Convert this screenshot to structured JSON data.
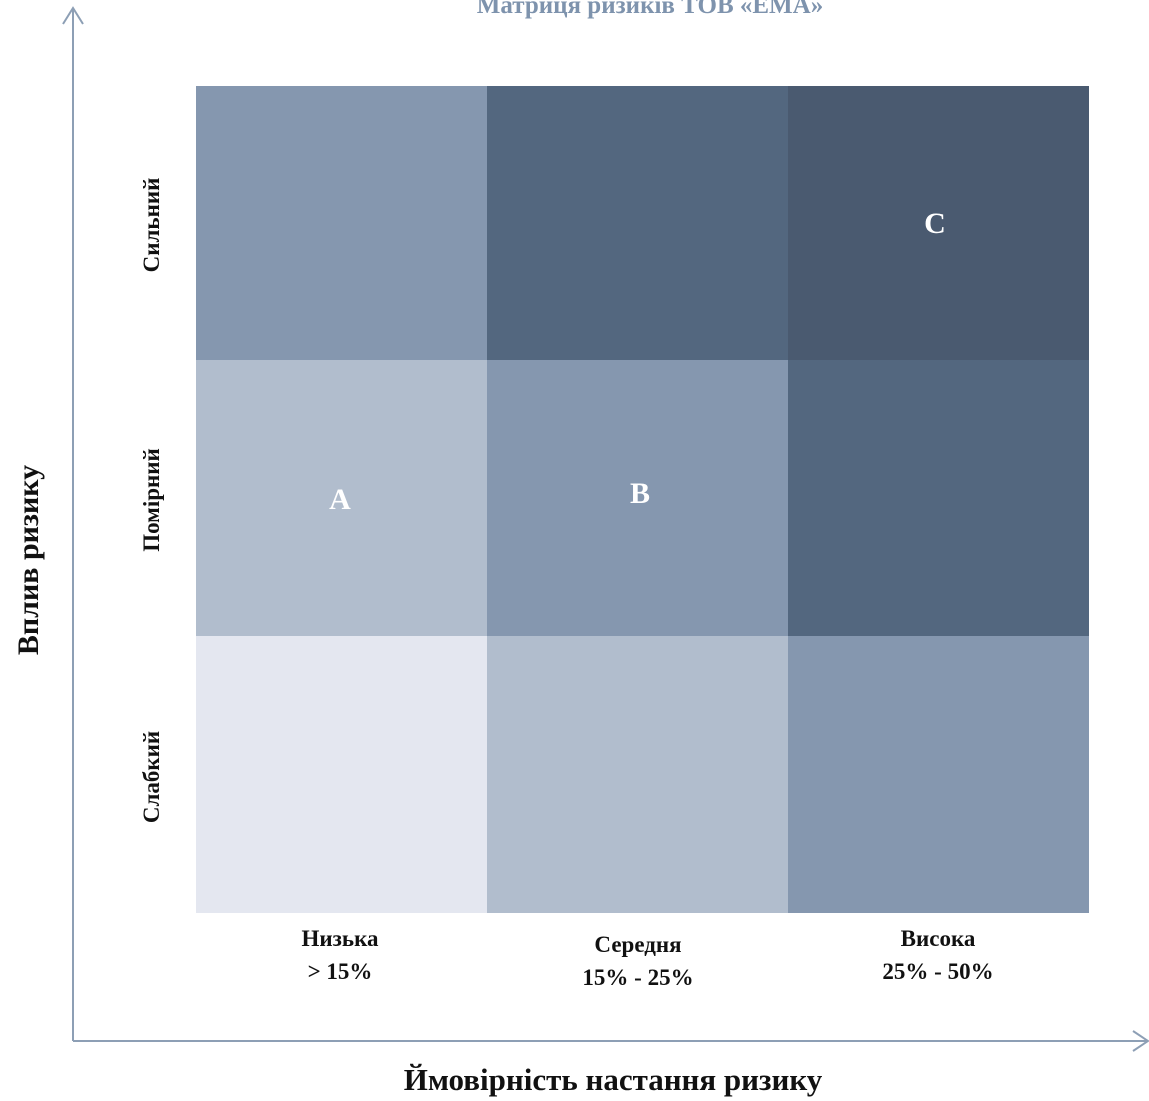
{
  "title": "Матриця ризиків ТОВ «ЕМА»",
  "y_axis_label": "Вплив ризику",
  "x_axis_label": "Ймовірність настання ризику",
  "rows": [
    {
      "label": "Сильний",
      "cells": [
        {
          "color": "#8597af",
          "letter": ""
        },
        {
          "color": "#53677f",
          "letter": ""
        },
        {
          "color": "#4a5a70",
          "letter": "C"
        }
      ]
    },
    {
      "label": "Помірний",
      "cells": [
        {
          "color": "#b1bdcd",
          "letter": "A"
        },
        {
          "color": "#8597af",
          "letter": "B"
        },
        {
          "color": "#53677f",
          "letter": ""
        }
      ]
    },
    {
      "label": "Слабкий",
      "cells": [
        {
          "color": "#e4e7f0",
          "letter": ""
        },
        {
          "color": "#b1bdcd",
          "letter": ""
        },
        {
          "color": "#8597af",
          "letter": ""
        }
      ]
    }
  ],
  "columns": [
    {
      "name": "Низька",
      "range": "> 15%"
    },
    {
      "name": "Середня",
      "range": "15% - 25%"
    },
    {
      "name": "Висока",
      "range": "25% - 50%"
    }
  ],
  "axis_color": "#8d9fb5"
}
